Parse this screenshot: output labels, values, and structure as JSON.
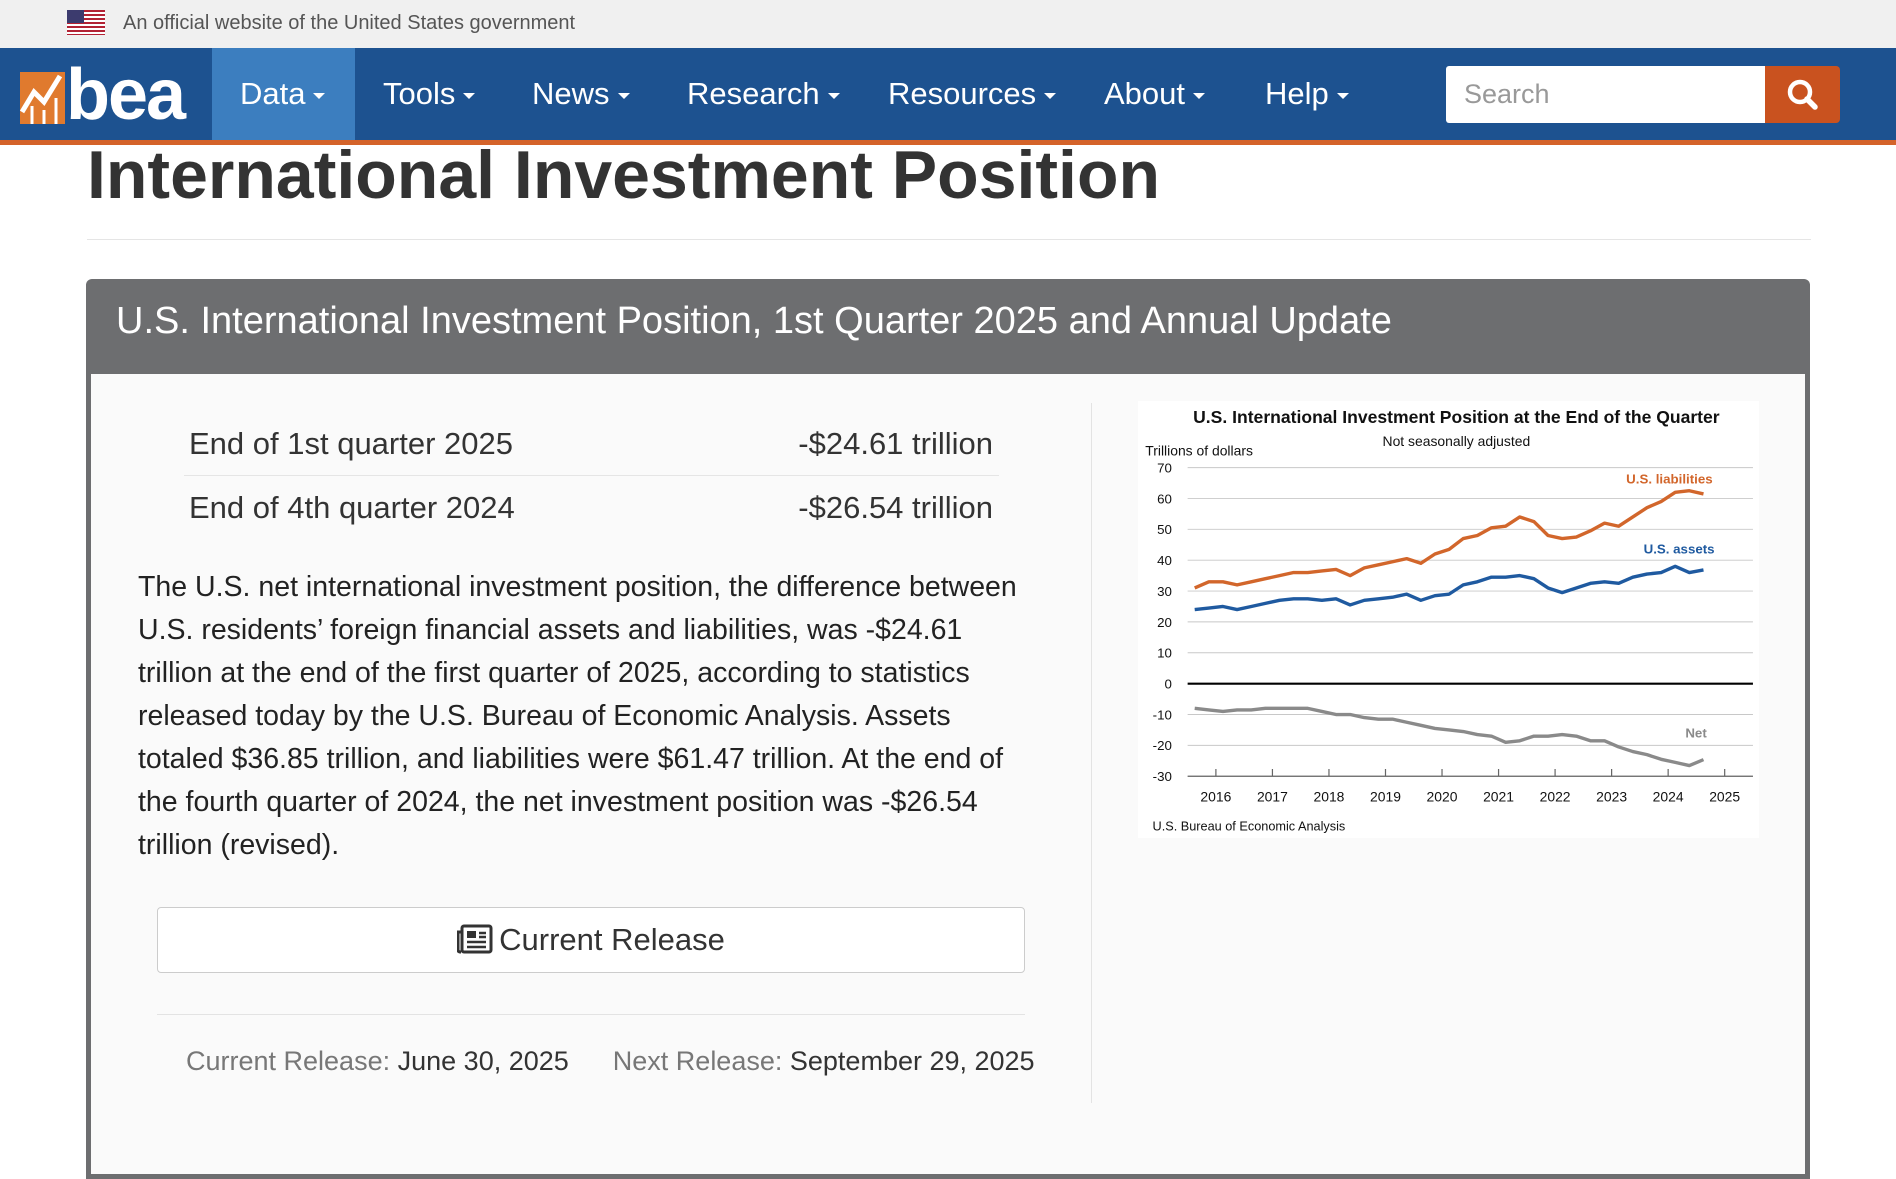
{
  "banner": "An official website of the United States government",
  "nav": {
    "logo": "bea",
    "items": [
      "Data",
      "Tools",
      "News",
      "Research",
      "Resources",
      "About",
      "Help"
    ],
    "search_placeholder": "Search"
  },
  "page_title": "International Investment Position",
  "card": {
    "title": "U.S. International Investment Position, 1st Quarter 2025 and Annual Update",
    "stats": [
      {
        "label": "End of 1st quarter 2025",
        "value": "-$24.61 trillion"
      },
      {
        "label": "End of 4th quarter 2024",
        "value": "-$26.54 trillion"
      }
    ],
    "body": "The U.S. net international investment position, the difference between U.S. residents’ foreign financial assets and liabilities, was -$24.61 trillion at the end of the first quarter of 2025, according to statistics released today by the U.S. Bureau of Economic Analysis. Assets totaled $36.85 trillion, and liabilities were $61.47 trillion. At the end of the fourth quarter of 2024, the net investment position was -$26.54 trillion (revised).",
    "button": "Current Release",
    "current_release": {
      "label": "Current Release:",
      "date": "June 30, 2025"
    },
    "next_release": {
      "label": "Next Release:",
      "date": "September 29, 2025"
    }
  },
  "chart_data": {
    "type": "line",
    "title": "U.S. International Investment Position at the End of the Quarter",
    "subtitle": "Not seasonally adjusted",
    "ylabel": "Trillions of dollars",
    "source": "U.S. Bureau of Economic Analysis",
    "x": [
      2016.125,
      2016.375,
      2016.625,
      2016.875,
      2017.125,
      2017.375,
      2017.625,
      2017.875,
      2018.125,
      2018.375,
      2018.625,
      2018.875,
      2019.125,
      2019.375,
      2019.625,
      2019.875,
      2020.125,
      2020.375,
      2020.625,
      2020.875,
      2021.125,
      2021.375,
      2021.625,
      2021.875,
      2022.125,
      2022.375,
      2022.625,
      2022.875,
      2023.125,
      2023.375,
      2023.625,
      2023.875,
      2024.125,
      2024.375,
      2024.625,
      2024.875,
      2025.125
    ],
    "xlim": [
      2016,
      2026
    ],
    "xticks": [
      {
        "value": 2016.5,
        "label": "2016"
      },
      {
        "value": 2017.5,
        "label": "2017"
      },
      {
        "value": 2018.5,
        "label": "2018"
      },
      {
        "value": 2019.5,
        "label": "2019"
      },
      {
        "value": 2020.5,
        "label": "2020"
      },
      {
        "value": 2021.5,
        "label": "2021"
      },
      {
        "value": 2022.5,
        "label": "2022"
      },
      {
        "value": 2023.5,
        "label": "2023"
      },
      {
        "value": 2024.5,
        "label": "2024"
      },
      {
        "value": 2025.5,
        "label": "2025"
      }
    ],
    "ylim": [
      -30,
      70
    ],
    "yticks": [
      -30,
      -20,
      -10,
      0,
      10,
      20,
      30,
      40,
      50,
      60,
      70
    ],
    "grid": true,
    "series": [
      {
        "name": "U.S. liabilities",
        "color": "#d2662b",
        "values": [
          31,
          33,
          33,
          32,
          33,
          34,
          35,
          36,
          36,
          36.5,
          37,
          35,
          37.5,
          38.5,
          39.5,
          40.5,
          39,
          42,
          43.5,
          47,
          48,
          50.5,
          51,
          54,
          52.5,
          48,
          47,
          47.5,
          49.5,
          52,
          51,
          54,
          57,
          59,
          62,
          62.5,
          61.47
        ]
      },
      {
        "name": "U.S. assets",
        "color": "#1f5aa0",
        "values": [
          24,
          24.5,
          25,
          24,
          25,
          26,
          27,
          27.5,
          27.5,
          27,
          27.5,
          25.5,
          27,
          27.5,
          28,
          29,
          27,
          28.5,
          29,
          32,
          33,
          34.5,
          34.5,
          35,
          34,
          31,
          29.5,
          31,
          32.5,
          33,
          32.5,
          34.5,
          35.5,
          36,
          38,
          36,
          36.85
        ]
      },
      {
        "name": "Net",
        "color": "#8a8a8a",
        "values": [
          -8,
          -8.5,
          -9,
          -8.5,
          -8.5,
          -8,
          -8,
          -8,
          -8,
          -9,
          -10,
          -10,
          -11,
          -11.5,
          -11.5,
          -12.5,
          -13.5,
          -14.5,
          -15,
          -15.5,
          -16.5,
          -17,
          -19,
          -18.5,
          -17,
          -17,
          -16.5,
          -17,
          -18.5,
          -18.5,
          -20.5,
          -22,
          -23,
          -24.5,
          -25.5,
          -26.54,
          -24.61
        ]
      }
    ]
  }
}
